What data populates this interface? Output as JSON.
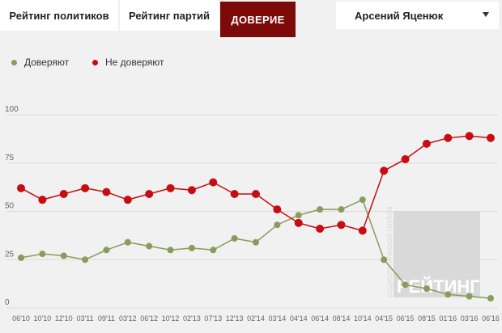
{
  "tabs": [
    {
      "label": "Рейтинг политиков"
    },
    {
      "label": "Рейтинг партий"
    },
    {
      "label": "ДОВЕРИЕ"
    }
  ],
  "select": {
    "value": "Арсений Яценюк"
  },
  "legend": [
    {
      "label": "Доверяют",
      "color": "#8c9a5b"
    },
    {
      "label": "Не доверяют",
      "color": "#c70c12"
    }
  ],
  "watermark": {
    "vertical": "социологическая группа",
    "brand": "РЕЙТИНГ"
  },
  "chart_data": {
    "type": "line",
    "x": [
      "06'10",
      "10'10",
      "12'10",
      "03'11",
      "09'11",
      "03'12",
      "06'12",
      "10'12",
      "02'13",
      "07'13",
      "12'13",
      "02'14",
      "03'14",
      "04'14",
      "06'14",
      "08'14",
      "10'14",
      "04'15",
      "06'15",
      "08'15",
      "01'16",
      "03'16",
      "06'16"
    ],
    "ylim": [
      0,
      100
    ],
    "yticks": [
      0,
      25,
      50,
      75,
      100
    ],
    "grid": true,
    "legend_position": "top-left",
    "series": [
      {
        "name": "Доверяют",
        "color": "#8c9a5b",
        "values": [
          26,
          28,
          27,
          25,
          30,
          34,
          32,
          30,
          31,
          30,
          36,
          34,
          43,
          48,
          51,
          51,
          56,
          25,
          12,
          10,
          7,
          6,
          5
        ]
      },
      {
        "name": "Не доверяют",
        "color": "#c70c12",
        "values": [
          62,
          56,
          59,
          62,
          60,
          56,
          59,
          62,
          61,
          65,
          59,
          59,
          51,
          44,
          41,
          43,
          40,
          71,
          77,
          85,
          88,
          89,
          88
        ]
      }
    ]
  }
}
